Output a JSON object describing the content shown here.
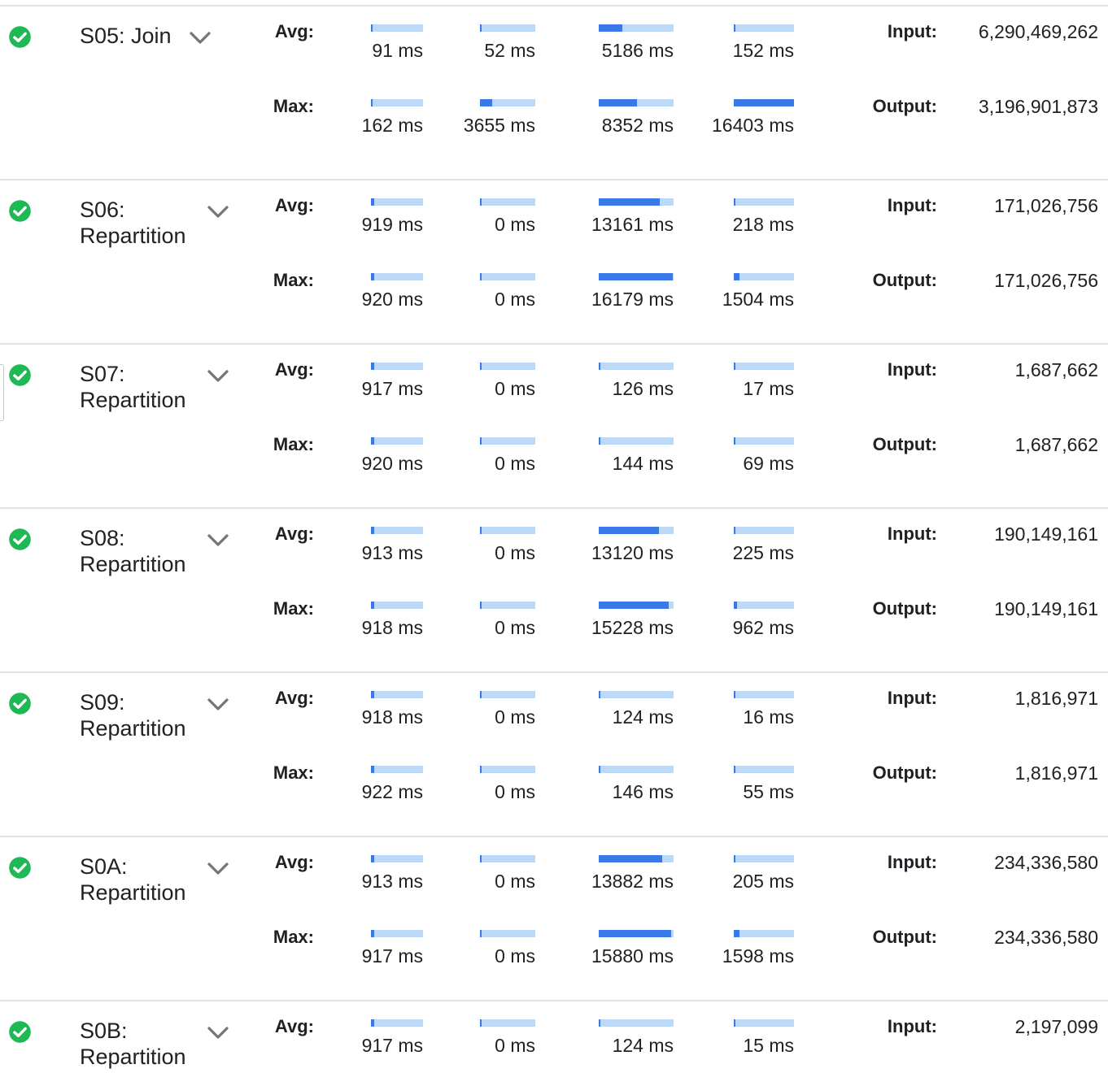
{
  "labels": {
    "avg": "Avg:",
    "max": "Max:",
    "input": "Input:",
    "output": "Output:"
  },
  "colors": {
    "bar_track": "#bcd9f7",
    "bar_fill": "#3b78e7",
    "status_ok": "#1db954"
  },
  "icons": {
    "status": "check-circle-icon",
    "expand": "chevron-down-icon"
  },
  "stages": [
    {
      "name": "S05: Join",
      "status": "complete",
      "avg": [
        {
          "text": "91 ms",
          "fill": 0.0
        },
        {
          "text": "52 ms",
          "fill": 0.0
        },
        {
          "text": "5186 ms",
          "fill": 0.32
        },
        {
          "text": "152 ms",
          "fill": 0.01
        }
      ],
      "max": [
        {
          "text": "162 ms",
          "fill": 0.01
        },
        {
          "text": "3655 ms",
          "fill": 0.22
        },
        {
          "text": "8352 ms",
          "fill": 0.51
        },
        {
          "text": "16403 ms",
          "fill": 1.0
        }
      ],
      "input": "6,290,469,262",
      "output": "3,196,901,873"
    },
    {
      "name": "S06: Repartition",
      "status": "complete",
      "avg": [
        {
          "text": "919 ms",
          "fill": 0.06
        },
        {
          "text": "0 ms",
          "fill": 0.0
        },
        {
          "text": "13161 ms",
          "fill": 0.81
        },
        {
          "text": "218 ms",
          "fill": 0.01
        }
      ],
      "max": [
        {
          "text": "920 ms",
          "fill": 0.06
        },
        {
          "text": "0 ms",
          "fill": 0.0
        },
        {
          "text": "16179 ms",
          "fill": 0.99
        },
        {
          "text": "1504 ms",
          "fill": 0.09
        }
      ],
      "input": "171,026,756",
      "output": "171,026,756"
    },
    {
      "name": "S07: Repartition",
      "status": "complete",
      "avg": [
        {
          "text": "917 ms",
          "fill": 0.06
        },
        {
          "text": "0 ms",
          "fill": 0.0
        },
        {
          "text": "126 ms",
          "fill": 0.01
        },
        {
          "text": "17 ms",
          "fill": 0.0
        }
      ],
      "max": [
        {
          "text": "920 ms",
          "fill": 0.06
        },
        {
          "text": "0 ms",
          "fill": 0.0
        },
        {
          "text": "144 ms",
          "fill": 0.01
        },
        {
          "text": "69 ms",
          "fill": 0.0
        }
      ],
      "input": "1,687,662",
      "output": "1,687,662"
    },
    {
      "name": "S08: Repartition",
      "status": "complete",
      "avg": [
        {
          "text": "913 ms",
          "fill": 0.06
        },
        {
          "text": "0 ms",
          "fill": 0.0
        },
        {
          "text": "13120 ms",
          "fill": 0.8
        },
        {
          "text": "225 ms",
          "fill": 0.01
        }
      ],
      "max": [
        {
          "text": "918 ms",
          "fill": 0.06
        },
        {
          "text": "0 ms",
          "fill": 0.0
        },
        {
          "text": "15228 ms",
          "fill": 0.93
        },
        {
          "text": "962 ms",
          "fill": 0.06
        }
      ],
      "input": "190,149,161",
      "output": "190,149,161"
    },
    {
      "name": "S09: Repartition",
      "status": "complete",
      "avg": [
        {
          "text": "918 ms",
          "fill": 0.06
        },
        {
          "text": "0 ms",
          "fill": 0.0
        },
        {
          "text": "124 ms",
          "fill": 0.01
        },
        {
          "text": "16 ms",
          "fill": 0.0
        }
      ],
      "max": [
        {
          "text": "922 ms",
          "fill": 0.06
        },
        {
          "text": "0 ms",
          "fill": 0.0
        },
        {
          "text": "146 ms",
          "fill": 0.01
        },
        {
          "text": "55 ms",
          "fill": 0.0
        }
      ],
      "input": "1,816,971",
      "output": "1,816,971"
    },
    {
      "name": "S0A: Repartition",
      "status": "complete",
      "avg": [
        {
          "text": "913 ms",
          "fill": 0.06
        },
        {
          "text": "0 ms",
          "fill": 0.0
        },
        {
          "text": "13882 ms",
          "fill": 0.85
        },
        {
          "text": "205 ms",
          "fill": 0.01
        }
      ],
      "max": [
        {
          "text": "917 ms",
          "fill": 0.06
        },
        {
          "text": "0 ms",
          "fill": 0.0
        },
        {
          "text": "15880 ms",
          "fill": 0.97
        },
        {
          "text": "1598 ms",
          "fill": 0.1
        }
      ],
      "input": "234,336,580",
      "output": "234,336,580"
    },
    {
      "name": "S0B: Repartition",
      "status": "complete",
      "avg": [
        {
          "text": "917 ms",
          "fill": 0.06
        },
        {
          "text": "0 ms",
          "fill": 0.0
        },
        {
          "text": "124 ms",
          "fill": 0.01
        },
        {
          "text": "15 ms",
          "fill": 0.0
        }
      ],
      "input": "2,197,099"
    }
  ]
}
